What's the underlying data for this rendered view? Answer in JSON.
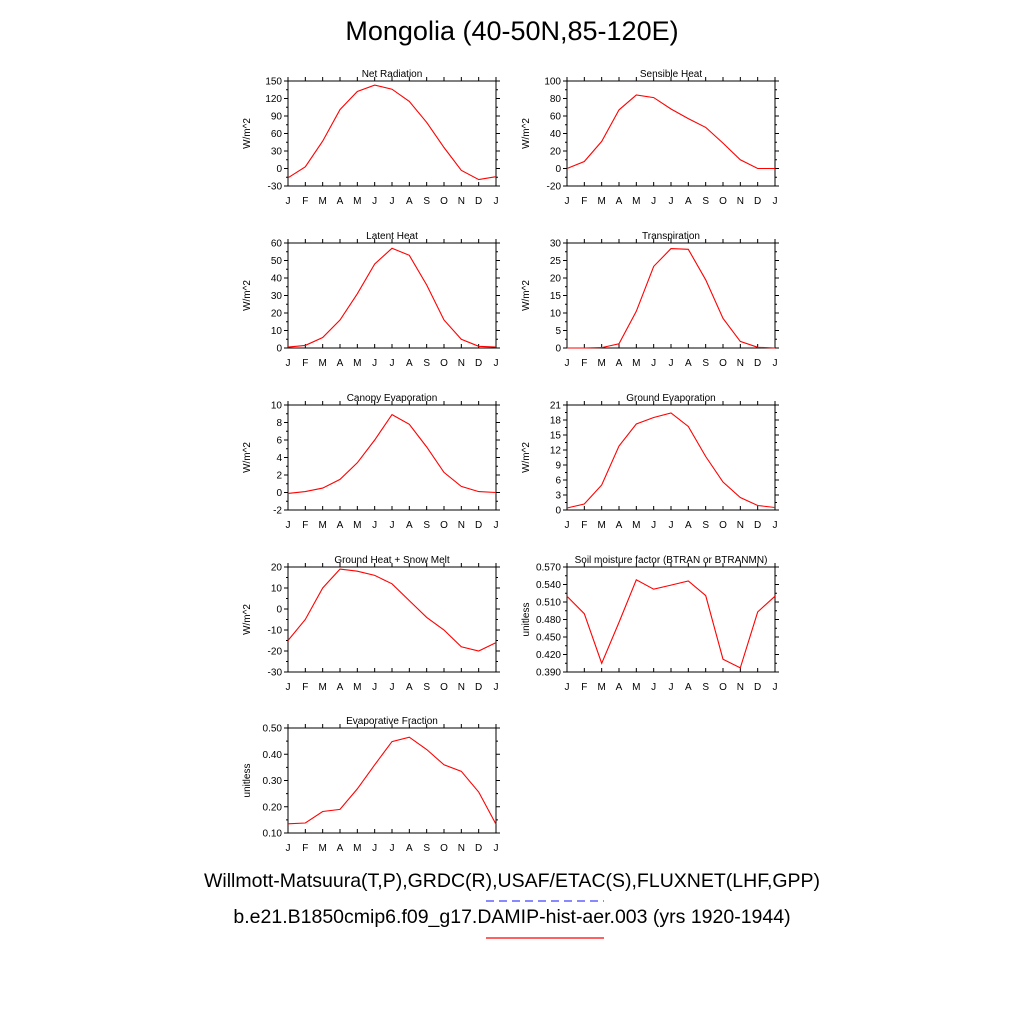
{
  "title": "Mongolia (40-50N,85-120E)",
  "legend": {
    "observations_label": "Willmott-Matsuura(T,P),GRDC(R),USAF/ETAC(S),FLUXNET(LHF,GPP)",
    "observations_color": "#4040ff",
    "model_label": "b.e21.B1850cmip6.f09_g17.DAMIP-hist-aer.003 (yrs 1920-1944)",
    "model_color": "#ff0000"
  },
  "chart_data": [
    {
      "type": "line",
      "title": "Net Radiation",
      "ylabel": "W/m^2",
      "categories": [
        "J",
        "F",
        "M",
        "A",
        "M",
        "J",
        "J",
        "A",
        "S",
        "O",
        "N",
        "D",
        "J"
      ],
      "ylim": [
        -30,
        150
      ],
      "yticks": [
        "-30",
        "0",
        "30",
        "60",
        "90",
        "120",
        "150"
      ],
      "values": [
        -16,
        3,
        47,
        101,
        132,
        143,
        136,
        115,
        79,
        36,
        -3,
        -19,
        -14
      ],
      "color": "#ff0000"
    },
    {
      "type": "line",
      "title": "Sensible Heat",
      "ylabel": "W/m^2",
      "categories": [
        "J",
        "F",
        "M",
        "A",
        "M",
        "J",
        "J",
        "A",
        "S",
        "O",
        "N",
        "D",
        "J"
      ],
      "ylim": [
        -20,
        100
      ],
      "yticks": [
        "-20",
        "0",
        "20",
        "40",
        "60",
        "80",
        "100"
      ],
      "values": [
        0,
        8,
        31,
        67,
        84,
        81,
        68,
        57,
        47,
        29,
        10,
        0,
        0
      ],
      "color": "#ff0000"
    },
    {
      "type": "line",
      "title": "Latent Heat",
      "ylabel": "W/m^2",
      "categories": [
        "J",
        "F",
        "M",
        "A",
        "M",
        "J",
        "J",
        "A",
        "S",
        "O",
        "N",
        "D",
        "J"
      ],
      "ylim": [
        0,
        60
      ],
      "yticks": [
        "0",
        "10",
        "20",
        "30",
        "40",
        "50",
        "60"
      ],
      "values": [
        0.5,
        1.5,
        6,
        16,
        31,
        48,
        57,
        53,
        36,
        16,
        5,
        1,
        0.5
      ],
      "color": "#ff0000"
    },
    {
      "type": "line",
      "title": "Transpiration",
      "ylabel": "W/m^2",
      "categories": [
        "J",
        "F",
        "M",
        "A",
        "M",
        "J",
        "J",
        "A",
        "S",
        "O",
        "N",
        "D",
        "J"
      ],
      "ylim": [
        0,
        30
      ],
      "yticks": [
        "0",
        "5",
        "10",
        "15",
        "20",
        "25",
        "30"
      ],
      "values": [
        0,
        0,
        0.1,
        1.2,
        10.5,
        23.3,
        28.4,
        28.2,
        19.5,
        8.5,
        1.9,
        0.2,
        0
      ],
      "color": "#ff0000"
    },
    {
      "type": "line",
      "title": "Canopy Evaporation",
      "ylabel": "W/m^2",
      "categories": [
        "J",
        "F",
        "M",
        "A",
        "M",
        "J",
        "J",
        "A",
        "S",
        "O",
        "N",
        "D",
        "J"
      ],
      "ylim": [
        -2,
        10
      ],
      "yticks": [
        "-2",
        "0",
        "2",
        "4",
        "6",
        "8",
        "10"
      ],
      "values": [
        -0.1,
        0.1,
        0.5,
        1.5,
        3.4,
        6.0,
        8.9,
        7.8,
        5.2,
        2.3,
        0.7,
        0.1,
        0
      ],
      "color": "#ff0000"
    },
    {
      "type": "line",
      "title": "Ground Evaporation",
      "ylabel": "W/m^2",
      "categories": [
        "J",
        "F",
        "M",
        "A",
        "M",
        "J",
        "J",
        "A",
        "S",
        "O",
        "N",
        "D",
        "J"
      ],
      "ylim": [
        0,
        21
      ],
      "yticks": [
        "0",
        "3",
        "6",
        "9",
        "12",
        "15",
        "18",
        "21"
      ],
      "values": [
        0.4,
        1.2,
        5,
        12.8,
        17.2,
        18.5,
        19.4,
        16.7,
        10.7,
        5.6,
        2.5,
        0.9,
        0.5
      ],
      "color": "#ff0000"
    },
    {
      "type": "line",
      "title": "Ground Heat + Snow Melt",
      "ylabel": "W/m^2",
      "categories": [
        "J",
        "F",
        "M",
        "A",
        "M",
        "J",
        "J",
        "A",
        "S",
        "O",
        "N",
        "D",
        "J"
      ],
      "ylim": [
        -30,
        20
      ],
      "yticks": [
        "-30",
        "-20",
        "-10",
        "0",
        "10",
        "20"
      ],
      "values": [
        -15,
        -5,
        10,
        19,
        18,
        16,
        12,
        4,
        -4,
        -10,
        -18,
        -20,
        -16
      ],
      "color": "#ff0000"
    },
    {
      "type": "line",
      "title": "Soil moisture factor (BTRAN or BTRANMN)",
      "ylabel": "unitless",
      "categories": [
        "J",
        "F",
        "M",
        "A",
        "M",
        "J",
        "J",
        "A",
        "S",
        "O",
        "N",
        "D",
        "J"
      ],
      "ylim": [
        0.39,
        0.57
      ],
      "yticks": [
        "0.390",
        "0.420",
        "0.450",
        "0.480",
        "0.510",
        "0.540",
        "0.570"
      ],
      "values": [
        0.52,
        0.49,
        0.405,
        0.475,
        0.548,
        0.532,
        0.539,
        0.546,
        0.521,
        0.412,
        0.397,
        0.493,
        0.52
      ],
      "color": "#ff0000"
    },
    {
      "type": "line",
      "title": "Evaporative Fraction",
      "ylabel": "unitless",
      "categories": [
        "J",
        "F",
        "M",
        "A",
        "M",
        "J",
        "J",
        "A",
        "S",
        "O",
        "N",
        "D",
        "J"
      ],
      "ylim": [
        0.1,
        0.5
      ],
      "yticks": [
        "0.10",
        "0.20",
        "0.30",
        "0.40",
        "0.50"
      ],
      "values": [
        0.135,
        0.138,
        0.182,
        0.19,
        0.268,
        0.36,
        0.448,
        0.465,
        0.418,
        0.36,
        0.335,
        0.256,
        0.133
      ],
      "color": "#ff0000"
    }
  ]
}
